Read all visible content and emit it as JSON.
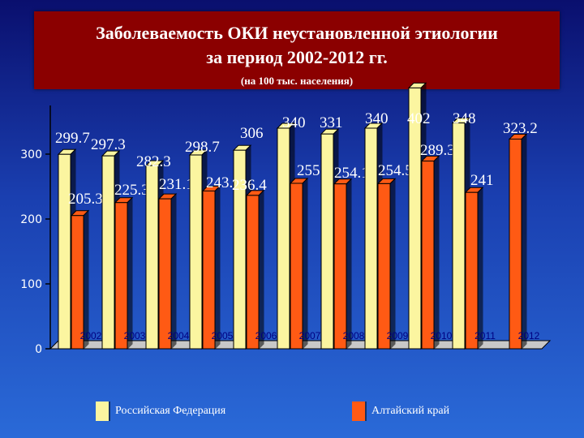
{
  "title_line1": "Заболеваемость ОКИ неустановленной этиологии",
  "title_line2": "за период 2002-2012 гг.",
  "subtitle": "(на 100 тыс. населения)",
  "colors": {
    "rf_bar": "#fbf5a0",
    "altai_bar": "#ff5a14",
    "title_bg": "#8b0000",
    "label_text": "#ffffff",
    "axis": "#000000"
  },
  "chart_data": {
    "type": "bar",
    "categories": [
      "2002",
      "2003",
      "2004",
      "2005",
      "2006",
      "2007",
      "2008",
      "2009",
      "2010",
      "2011",
      "2012"
    ],
    "series": [
      {
        "name": "Российская Федерация",
        "values": [
          299.7,
          297.3,
          282.3,
          298.7,
          306,
          340,
          331,
          340,
          402,
          348,
          null
        ],
        "labels": [
          "299.7",
          "297.3",
          "282.3",
          "298.7",
          "306",
          "340",
          "331",
          "340",
          "402",
          "348",
          ""
        ]
      },
      {
        "name": "Алтайский край",
        "values": [
          205.3,
          225.3,
          231.1,
          243.2,
          236.4,
          255,
          254.1,
          254.5,
          289.3,
          241,
          323.2
        ],
        "labels": [
          "205.3",
          "225.3",
          "231.1",
          "243.2",
          "236.4",
          "255",
          "254.1",
          "254.5",
          "289.3",
          "241",
          "323.2"
        ]
      }
    ],
    "yticks": [
      "0",
      "100",
      "200",
      "300"
    ],
    "ylim": [
      0,
      400
    ],
    "grid": false,
    "legend": "bottom"
  }
}
